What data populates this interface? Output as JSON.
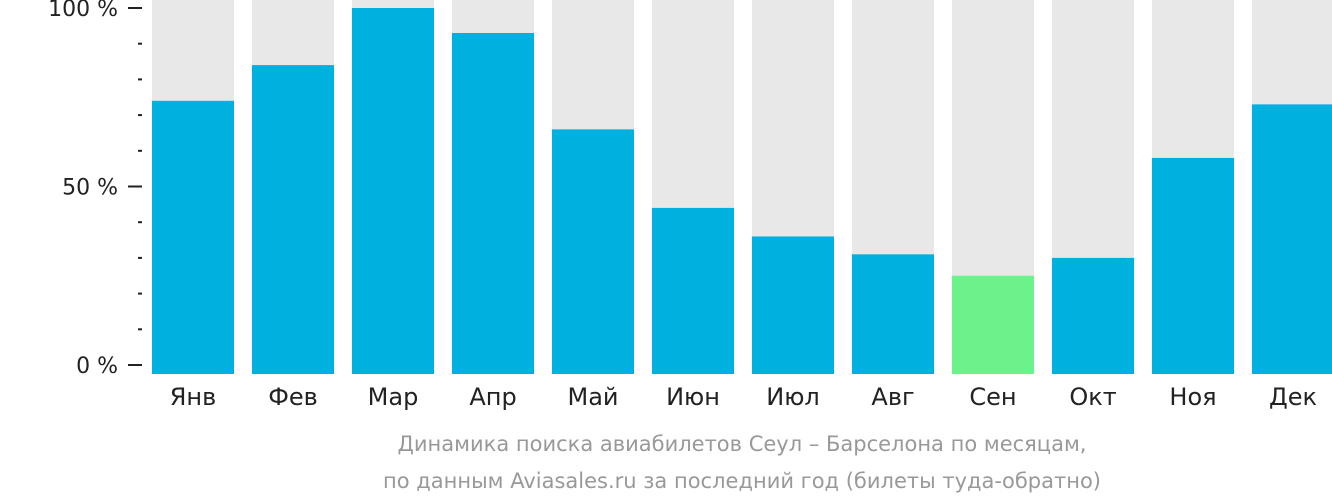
{
  "chart_data": {
    "type": "bar",
    "categories": [
      "Янв",
      "Фев",
      "Мар",
      "Апр",
      "Май",
      "Июн",
      "Июл",
      "Авг",
      "Сен",
      "Окт",
      "Ноя",
      "Дек"
    ],
    "values": [
      74,
      84,
      100,
      93,
      66,
      44,
      36,
      31,
      25,
      30,
      58,
      73
    ],
    "ylim": [
      0,
      100
    ],
    "y_ticks": [
      {
        "value": 0,
        "label": "0 %"
      },
      {
        "value": 50,
        "label": "50 %"
      },
      {
        "value": 100,
        "label": "100 %"
      }
    ],
    "minor_tick_step": 10,
    "highlight_index": 8,
    "colors": {
      "bar": "#00b0de",
      "highlight": "#6cf28a",
      "background_bar": "#e8e8e8",
      "axis": "#222222"
    },
    "caption_lines": [
      "Динамика поиска авиабилетов Сеул – Барселона по месяцам,",
      "по данным Aviasales.ru за последний год (билеты туда-обратно)"
    ]
  }
}
